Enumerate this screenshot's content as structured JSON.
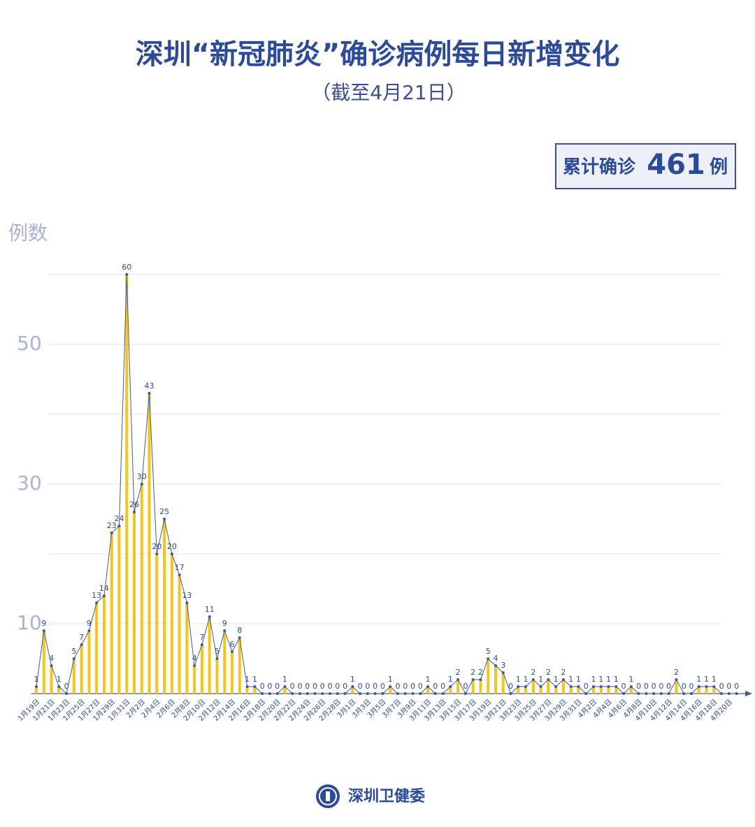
{
  "chart_data": {
    "type": "bar-line",
    "title": "深圳“新冠肺炎”确诊病例每日新增变化",
    "subtitle": "（截至4月21日）",
    "ylabel": "例数",
    "annotation": {
      "prefix": "累计确诊",
      "value": 461,
      "suffix": "例"
    },
    "source": "深圳卫健委",
    "categories": [
      "1月19日",
      null,
      "1月21日",
      null,
      "1月23日",
      null,
      "1月25日",
      null,
      "1月27日",
      null,
      "1月29日",
      null,
      "1月31日",
      null,
      "2月2日",
      null,
      "2月4日",
      null,
      "2月6日",
      null,
      "2月8日",
      null,
      "2月10日",
      null,
      "2月12日",
      null,
      "2月14日",
      null,
      "2月16日",
      null,
      "2月18日",
      null,
      "2月20日",
      null,
      "2月22日",
      null,
      "2月24日",
      null,
      "2月26日",
      null,
      "2月28日",
      null,
      "3月1日",
      null,
      "3月3日",
      null,
      "3月5日",
      null,
      "3月7日",
      null,
      "3月9日",
      null,
      "3月11日",
      null,
      "3月13日",
      null,
      "3月15日",
      null,
      "3月17日",
      null,
      "3月19日",
      null,
      "3月21日",
      null,
      "3月23日",
      null,
      "3月25日",
      null,
      "3月27日",
      null,
      "3月29日",
      null,
      "3月31日",
      null,
      "4月2日",
      null,
      "4月4日",
      null,
      "4月6日",
      null,
      "4月8日",
      null,
      "4月10日",
      null,
      "4月12日",
      null,
      "4月14日",
      null,
      "4月16日",
      null,
      "4月18日",
      null,
      "4月20日",
      null
    ],
    "values": [
      1,
      9,
      4,
      1,
      0,
      5,
      7,
      9,
      13,
      14,
      23,
      24,
      60,
      26,
      30,
      43,
      20,
      25,
      20,
      17,
      13,
      4,
      7,
      11,
      5,
      9,
      6,
      8,
      1,
      1,
      0,
      0,
      0,
      1,
      0,
      0,
      0,
      0,
      0,
      0,
      0,
      0,
      1,
      0,
      0,
      0,
      0,
      1,
      0,
      0,
      0,
      0,
      1,
      0,
      0,
      1,
      2,
      0,
      2,
      2,
      5,
      4,
      3,
      0,
      1,
      1,
      2,
      1,
      2,
      1,
      2,
      1,
      1,
      0,
      1,
      1,
      1,
      1,
      0,
      1,
      0,
      0,
      0,
      0,
      0,
      2,
      0,
      0,
      1,
      1,
      1,
      0,
      0,
      0
    ],
    "bar_color": "#f5c518",
    "line_color": "#3d5aa0",
    "ylim": [
      0,
      60
    ],
    "yticks": [
      10,
      30,
      50
    ],
    "minor_yticks": [
      20,
      40,
      60
    ],
    "grid": true
  }
}
